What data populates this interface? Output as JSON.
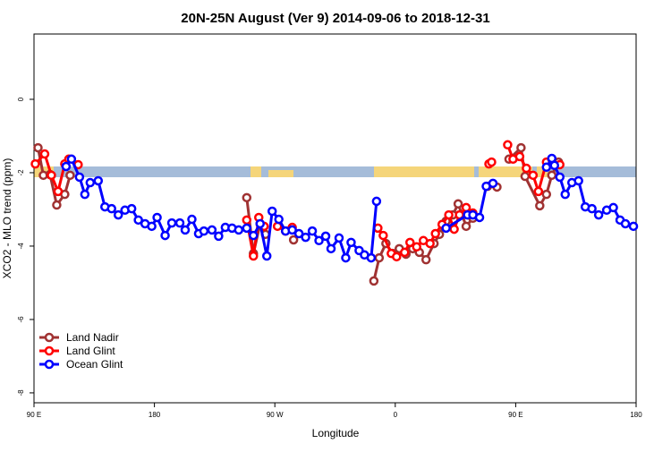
{
  "chart_data": {
    "type": "line",
    "title": "20N-25N August (Ver 9)   2014-09-06 to 2018-12-31",
    "xlabel": "Longitude",
    "ylabel": "XCO2 - MLO trend (ppm)",
    "xlim": [
      90,
      540
    ],
    "xticks": [
      {
        "value": 90,
        "label": "90 E"
      },
      180,
      {
        "value": 270,
        "label": "90 W"
      },
      {
        "value": 360,
        "label": "0"
      },
      {
        "value": 450,
        "label": "90 E"
      },
      {
        "value": 540,
        "label": "180"
      }
    ],
    "ylim": [
      -8.27,
      1.78
    ],
    "yticks": [
      -8,
      -6,
      -4,
      -2,
      0
    ],
    "legend": "bottomleft",
    "series": [
      {
        "name": "Land Nadir",
        "color": "#a03232",
        "x": [
          93,
          97,
          102,
          107,
          113,
          117,
          null,
          249,
          254,
          259,
          263,
          null,
          284,
          null,
          344,
          348,
          353,
          358,
          363,
          368,
          373,
          378,
          383,
          389,
          393,
          398,
          403,
          407,
          413,
          418,
          null,
          429,
          436,
          null,
          445,
          454,
          457,
          468,
          473,
          477,
          482
        ],
        "values": [
          -1.32,
          -2.07,
          -2.05,
          -2.88,
          -2.59,
          -2.07,
          null,
          -2.68,
          -4.2,
          -3.39,
          -3.68,
          null,
          -3.83,
          null,
          -4.95,
          -4.32,
          -3.93,
          -4.2,
          -4.07,
          -4.22,
          -4.07,
          -4.17,
          -4.37,
          -3.93,
          -3.68,
          -3.32,
          -3.15,
          -2.85,
          -3.46,
          -3.24,
          null,
          -2.37,
          -2.39,
          null,
          -1.63,
          -1.32,
          -2.1,
          -2.9,
          -2.59,
          -2.07,
          -1.71
        ]
      },
      {
        "name": "Land Glint",
        "color": "#ff0000",
        "x": [
          91,
          98,
          103,
          108,
          113,
          116,
          123,
          null,
          249,
          254,
          258,
          262,
          null,
          272,
          278,
          283,
          null,
          347,
          351,
          357,
          361,
          367,
          371,
          376,
          381,
          386,
          390,
          395,
          400,
          404,
          408,
          413,
          418,
          null,
          430,
          432,
          null,
          444,
          448,
          453,
          458,
          463,
          467,
          473,
          477,
          483
        ],
        "values": [
          -1.76,
          -1.49,
          -2.07,
          -2.51,
          -1.76,
          -1.63,
          -1.78,
          null,
          -3.29,
          -4.27,
          -3.22,
          -3.46,
          null,
          -3.46,
          -3.59,
          -3.49,
          null,
          -3.51,
          -3.71,
          -4.2,
          -4.29,
          -4.17,
          -3.9,
          -4.02,
          -3.85,
          -3.93,
          -3.66,
          -3.41,
          -3.15,
          -3.54,
          -3.15,
          -2.95,
          -3.1,
          null,
          -1.76,
          -1.71,
          null,
          -1.24,
          -1.63,
          -1.56,
          -1.88,
          -2.07,
          -2.51,
          -1.71,
          -1.63,
          -1.78
        ]
      },
      {
        "name": "Ocean Glint",
        "color": "#0000ff",
        "x": [
          114,
          118,
          124,
          128,
          132,
          138,
          143,
          148,
          153,
          158,
          163,
          168,
          173,
          178,
          182,
          188,
          193,
          199,
          203,
          208,
          213,
          217,
          223,
          228,
          233,
          238,
          243,
          249,
          254,
          259,
          264,
          268,
          273,
          278,
          283,
          288,
          293,
          298,
          303,
          308,
          312,
          318,
          323,
          327,
          333,
          337,
          342,
          346,
          null,
          398,
          414,
          418,
          423,
          428,
          433,
          null,
          473,
          477,
          479,
          483,
          487,
          492,
          497,
          502,
          507,
          512,
          518,
          523,
          528,
          532,
          538
        ],
        "values": [
          -1.83,
          -1.63,
          -2.12,
          -2.59,
          -2.27,
          -2.22,
          -2.93,
          -2.98,
          -3.15,
          -3.02,
          -2.98,
          -3.29,
          -3.39,
          -3.46,
          -3.22,
          -3.71,
          -3.37,
          -3.37,
          -3.56,
          -3.27,
          -3.66,
          -3.59,
          -3.56,
          -3.73,
          -3.49,
          -3.51,
          -3.56,
          -3.51,
          -3.71,
          -3.39,
          -4.27,
          -3.05,
          -3.27,
          -3.59,
          -3.56,
          -3.66,
          -3.76,
          -3.59,
          -3.85,
          -3.73,
          -4.07,
          -3.78,
          -4.32,
          -3.9,
          -4.12,
          -4.24,
          -4.32,
          -2.78,
          null,
          -3.51,
          -3.15,
          -3.15,
          -3.22,
          -2.37,
          -2.29,
          null,
          -1.85,
          -1.61,
          -1.8,
          -2.12,
          -2.59,
          -2.27,
          -2.22,
          -2.93,
          -2.98,
          -3.15,
          -3.02,
          -2.95,
          -3.29,
          -3.39,
          -3.46
        ]
      }
    ]
  }
}
